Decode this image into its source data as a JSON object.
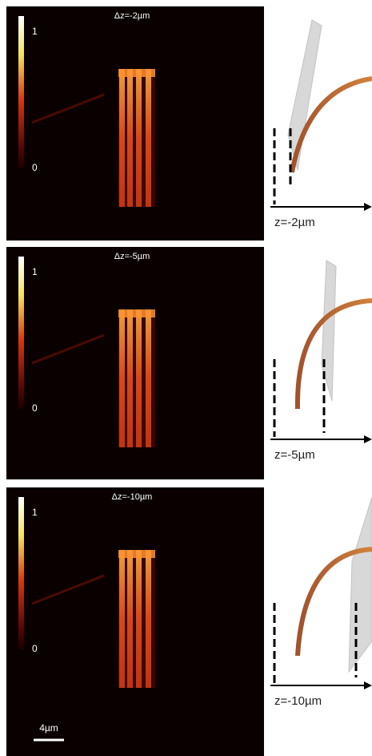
{
  "panels": [
    {
      "title": "Δz=-2µm",
      "colorbar_max": 1,
      "colorbar_min": 0,
      "z_label": "z=-2µm"
    },
    {
      "title": "Δz=-5µm",
      "colorbar_max": 1,
      "colorbar_min": 0,
      "z_label": "z=-5µm"
    },
    {
      "title": "Δz=-10µm",
      "colorbar_max": 1,
      "colorbar_min": 0,
      "z_label": "z=-10µm"
    }
  ],
  "scale_bar": "4µm"
}
